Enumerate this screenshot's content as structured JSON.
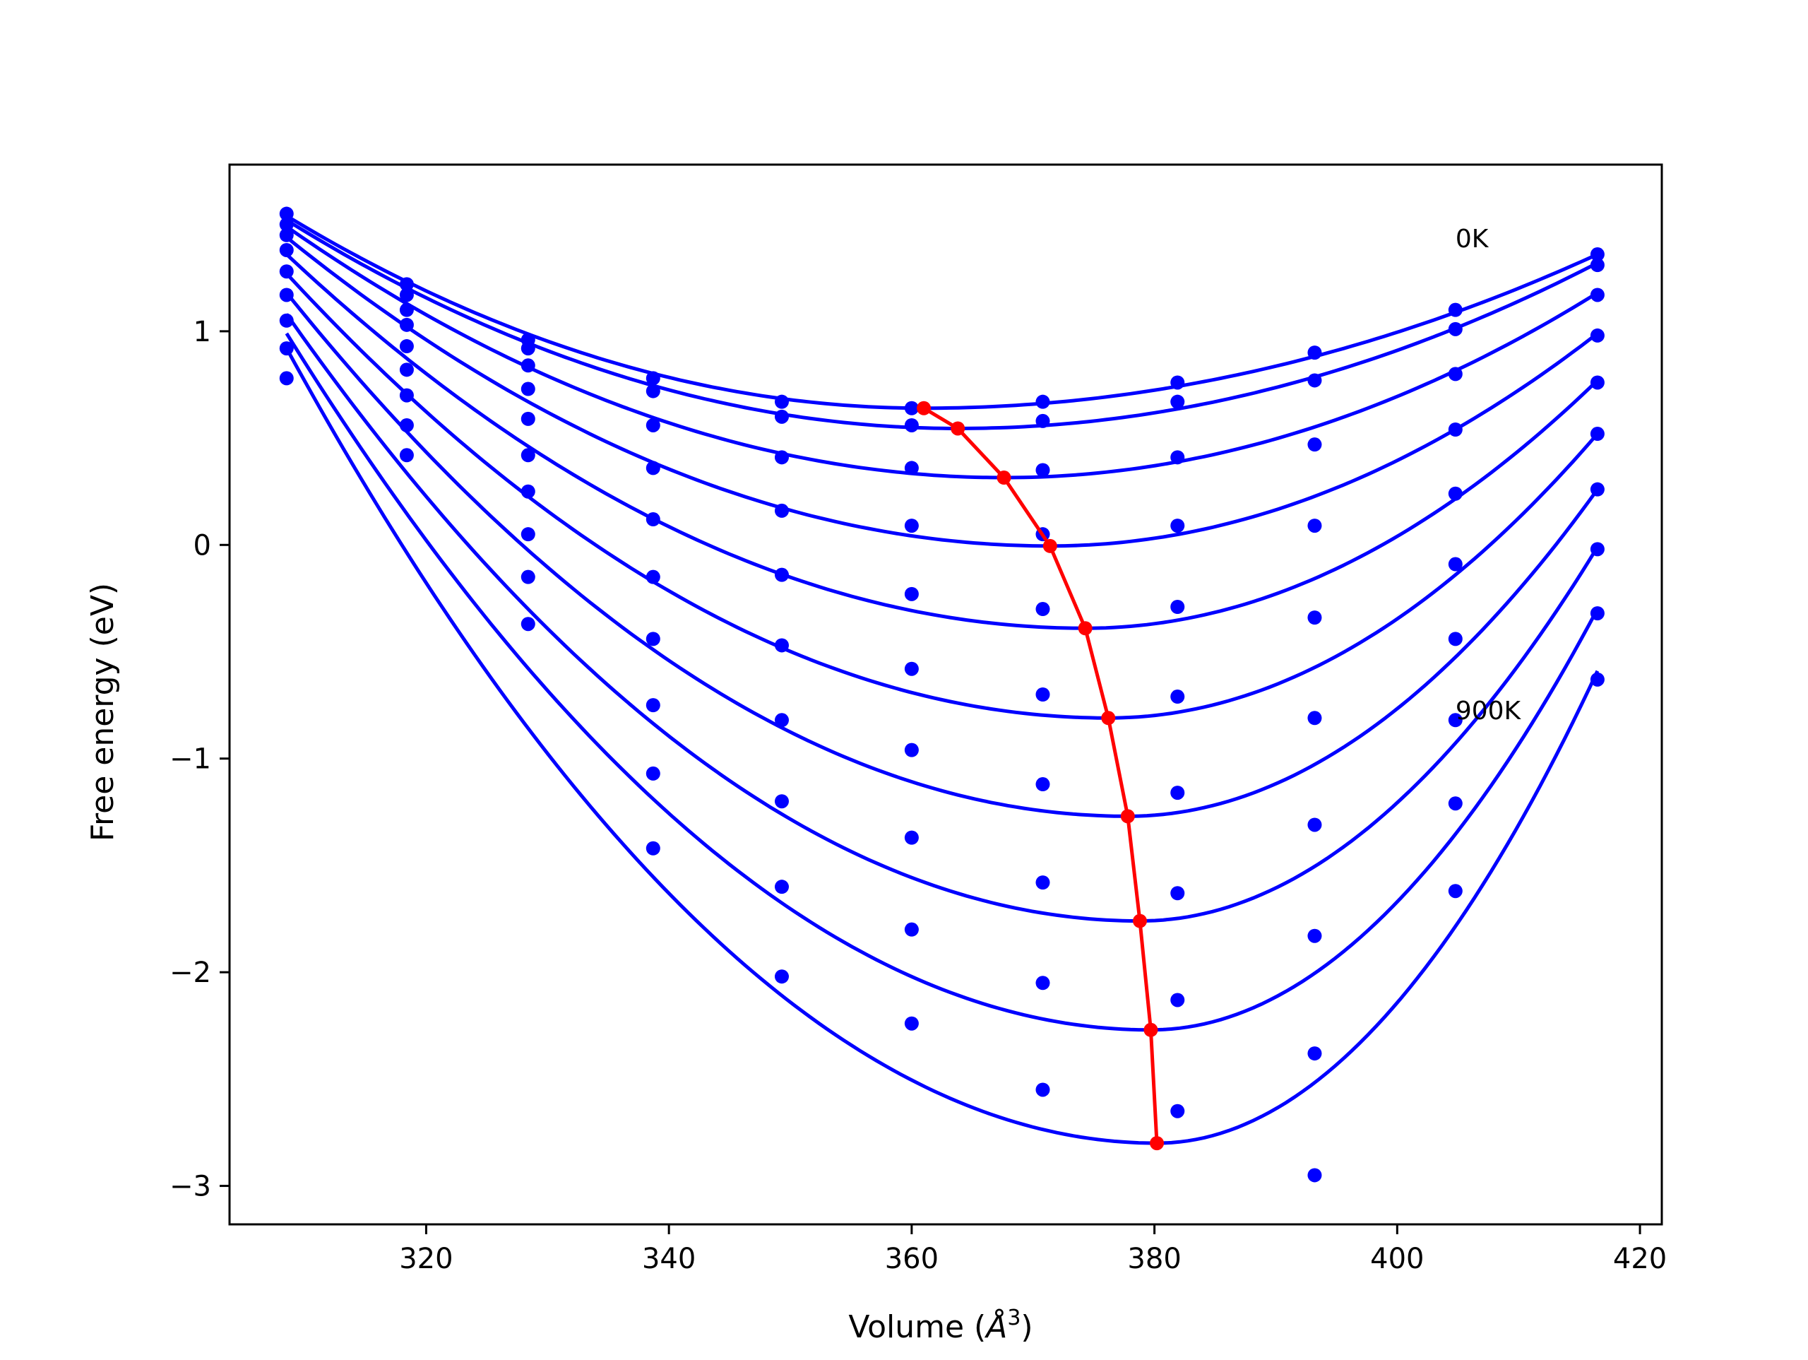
{
  "chart_data": {
    "type": "line",
    "xlabel": "Volume (",
    "xlabel_unit": "Å",
    "xlabel_exp": "3",
    "xlabel_close": ")",
    "ylabel": "Free energy (eV)",
    "xlim": [
      303.8,
      421.8
    ],
    "ylim": [
      -3.18,
      1.78
    ],
    "xticks": [
      320,
      340,
      360,
      380,
      400,
      420
    ],
    "xtick_labels": [
      "320",
      "340",
      "360",
      "380",
      "400",
      "420"
    ],
    "yticks": [
      1,
      0,
      -1,
      -2,
      -3
    ],
    "ytick_labels": [
      "1",
      "0",
      "−1",
      "−2",
      "−3"
    ],
    "grid": false,
    "annotations": [
      {
        "text": "0K",
        "x": 404.8,
        "y": 1.44
      },
      {
        "text": "900K",
        "x": 404.8,
        "y": -0.77
      }
    ],
    "series_color": "#0000ff",
    "minima_color": "#ff0000",
    "volumes": [
      308.5,
      318.4,
      328.4,
      338.7,
      349.3,
      360.0,
      370.8,
      381.9,
      393.2,
      404.8,
      416.5
    ],
    "series": [
      {
        "values": [
          1.55,
          1.22,
          0.96,
          0.78,
          0.67,
          0.64,
          0.67,
          0.76,
          0.9,
          1.1,
          1.36
        ]
      },
      {
        "values": [
          1.5,
          1.17,
          0.92,
          0.72,
          0.6,
          0.56,
          0.58,
          0.67,
          0.77,
          1.01,
          1.31
        ]
      },
      {
        "values": [
          1.45,
          1.1,
          0.84,
          0.56,
          0.41,
          0.36,
          0.35,
          0.41,
          0.47,
          0.8,
          1.17
        ]
      },
      {
        "values": [
          1.38,
          1.03,
          0.73,
          0.36,
          0.16,
          0.09,
          0.05,
          0.09,
          0.09,
          0.54,
          0.98
        ]
      },
      {
        "values": [
          1.28,
          0.93,
          0.59,
          0.12,
          -0.14,
          -0.23,
          -0.3,
          -0.29,
          -0.34,
          0.24,
          0.76
        ]
      },
      {
        "values": [
          1.17,
          0.82,
          0.42,
          -0.15,
          -0.47,
          -0.58,
          -0.7,
          -0.71,
          -0.81,
          -0.09,
          0.52
        ]
      },
      {
        "values": [
          1.05,
          0.7,
          0.25,
          -0.44,
          -0.82,
          -0.96,
          -1.12,
          -1.16,
          -1.31,
          -0.44,
          0.26
        ]
      },
      {
        "values": [
          0.92,
          0.56,
          0.05,
          -0.75,
          -1.2,
          -1.37,
          -1.58,
          -1.63,
          -1.83,
          -0.82,
          -0.02
        ]
      },
      {
        "values": [
          0.78,
          0.42,
          -0.15,
          -1.07,
          -1.6,
          -1.8,
          -2.05,
          -2.13,
          -2.38,
          -1.21,
          -0.32
        ]
      },
      {
        "values": [
          null,
          null,
          -0.37,
          -1.42,
          -2.02,
          -2.24,
          -2.55,
          -2.65,
          -2.95,
          -1.62,
          -0.63
        ]
      }
    ],
    "fit_curves": [
      {
        "vmin": 361.0,
        "fmin": 0.64,
        "left": [
          308.5,
          1.54
        ],
        "right": [
          416.5,
          1.36
        ]
      },
      {
        "vmin": 363.8,
        "fmin": 0.545,
        "left": [
          308.5,
          1.52
        ],
        "right": [
          416.5,
          1.32
        ]
      },
      {
        "vmin": 367.6,
        "fmin": 0.315,
        "left": [
          308.5,
          1.49
        ],
        "right": [
          416.5,
          1.18
        ]
      },
      {
        "vmin": 371.4,
        "fmin": -0.005,
        "left": [
          308.5,
          1.44
        ],
        "right": [
          416.5,
          0.99
        ]
      },
      {
        "vmin": 374.3,
        "fmin": -0.39,
        "left": [
          308.5,
          1.36
        ],
        "right": [
          416.5,
          0.77
        ]
      },
      {
        "vmin": 376.2,
        "fmin": -0.81,
        "left": [
          308.5,
          1.27
        ],
        "right": [
          416.5,
          0.52
        ]
      },
      {
        "vmin": 377.8,
        "fmin": -1.27,
        "left": [
          308.5,
          1.18
        ],
        "right": [
          416.5,
          0.26
        ]
      },
      {
        "vmin": 378.8,
        "fmin": -1.76,
        "left": [
          308.5,
          1.08
        ],
        "right": [
          416.5,
          -0.01
        ]
      },
      {
        "vmin": 379.7,
        "fmin": -2.27,
        "left": [
          308.5,
          0.99
        ],
        "right": [
          416.5,
          -0.3
        ]
      },
      {
        "vmin": 380.2,
        "fmin": -2.8,
        "left": [
          308.5,
          0.92
        ],
        "right": [
          416.5,
          -0.59
        ]
      }
    ],
    "minima": {
      "x": [
        361.0,
        363.8,
        367.6,
        371.4,
        374.3,
        376.2,
        377.8,
        378.8,
        379.7,
        380.2
      ],
      "y": [
        0.64,
        0.545,
        0.315,
        -0.005,
        -0.39,
        -0.81,
        -1.27,
        -1.76,
        -2.27,
        -2.8
      ]
    }
  }
}
